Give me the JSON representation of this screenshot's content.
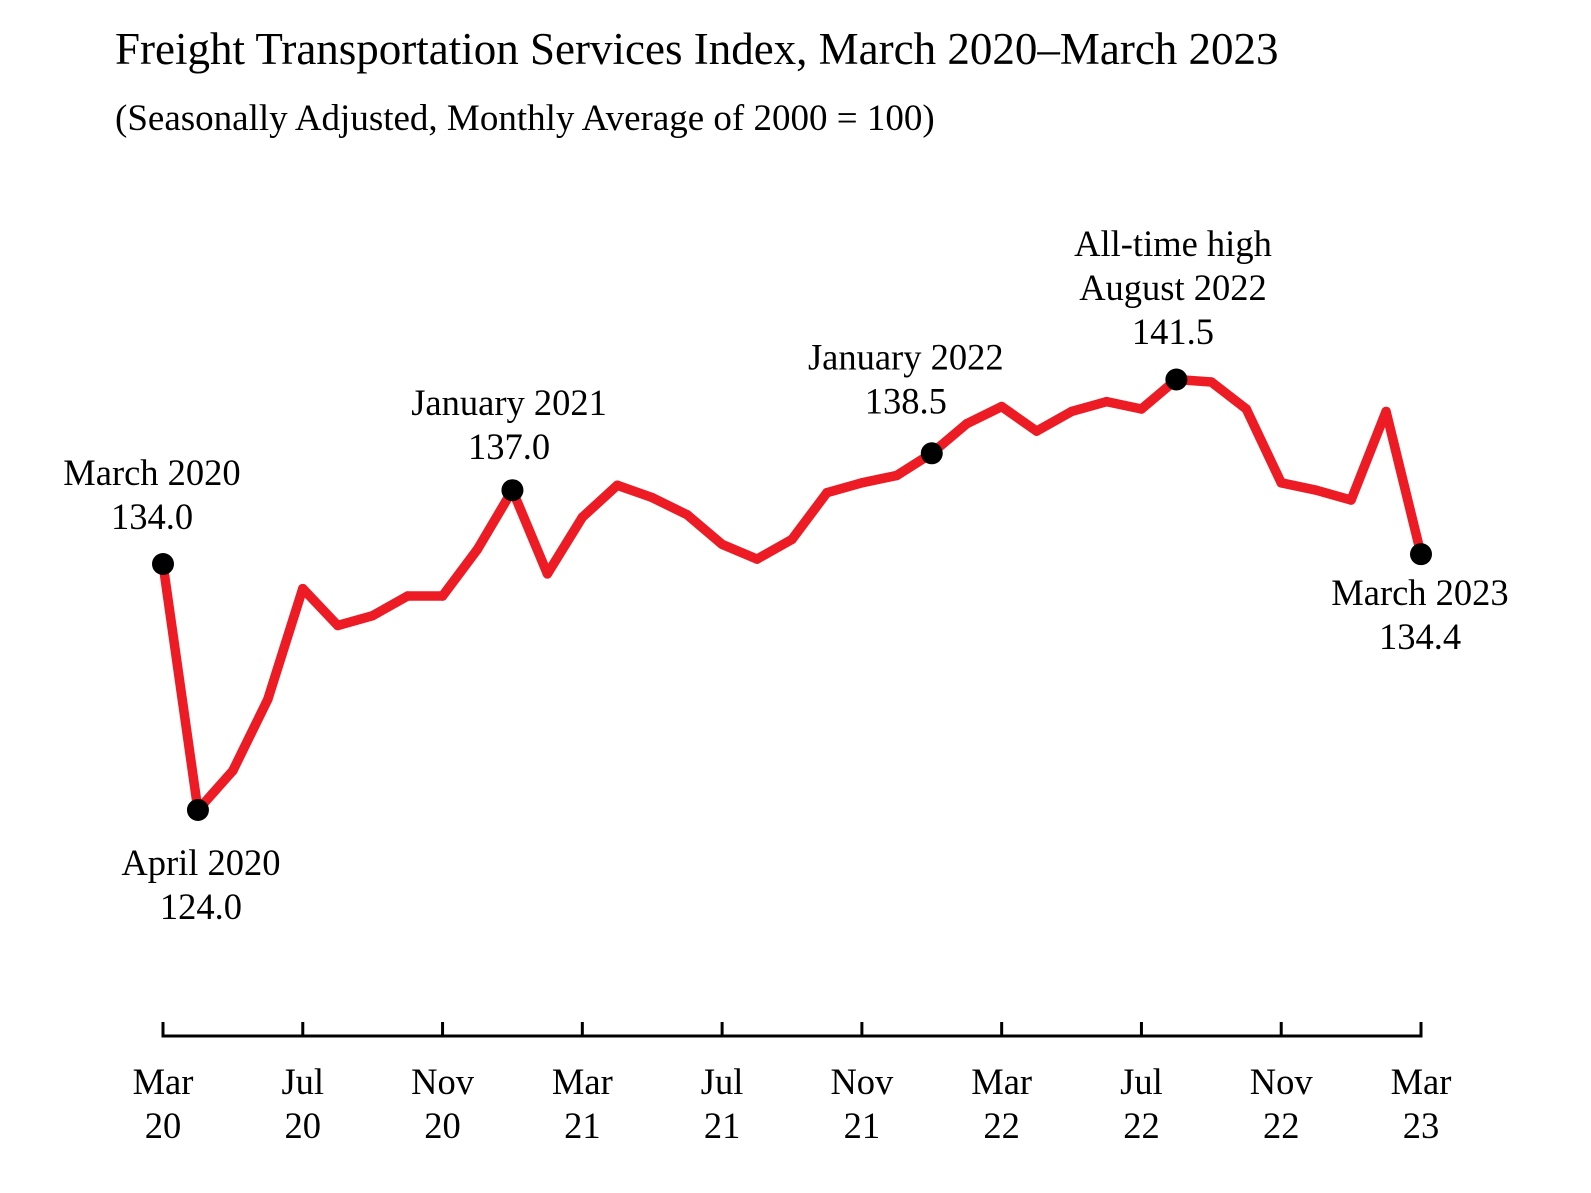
{
  "chart_data": {
    "type": "line",
    "title": "Freight Transportation Services Index, March 2020–March 2023",
    "subtitle": "(Seasonally Adjusted, Monthly Average of 2000 = 100)",
    "xlim": [
      0,
      36
    ],
    "ylim": [
      120,
      145
    ],
    "grid": false,
    "legend": false,
    "colors": {
      "line": "#ED1C24",
      "marker": "#000000",
      "axis": "#000000"
    },
    "series": [
      {
        "x": [
          0,
          1,
          2,
          3,
          4,
          5,
          6,
          7,
          8,
          9,
          10,
          11,
          12,
          13,
          14,
          15,
          16,
          17,
          18,
          19,
          20,
          21,
          22,
          23,
          24,
          25,
          26,
          27,
          28,
          29,
          30,
          31,
          32,
          33,
          34,
          35,
          36
        ],
        "values": [
          134.0,
          124.0,
          125.6,
          128.5,
          133.0,
          131.5,
          131.9,
          132.7,
          132.7,
          134.6,
          137.0,
          133.6,
          135.9,
          137.2,
          136.7,
          136.0,
          134.8,
          134.2,
          135.0,
          136.9,
          137.3,
          137.6,
          138.5,
          139.7,
          140.4,
          139.4,
          140.2,
          140.6,
          140.3,
          141.5,
          141.4,
          140.3,
          137.3,
          137.0,
          136.6,
          140.2,
          134.4
        ]
      }
    ],
    "x_ticks": [
      {
        "x": 0,
        "lines": [
          "Mar",
          "20"
        ]
      },
      {
        "x": 4,
        "lines": [
          "Jul",
          "20"
        ]
      },
      {
        "x": 8,
        "lines": [
          "Nov",
          "20"
        ]
      },
      {
        "x": 12,
        "lines": [
          "Mar",
          "21"
        ]
      },
      {
        "x": 16,
        "lines": [
          "Jul",
          "21"
        ]
      },
      {
        "x": 20,
        "lines": [
          "Nov",
          "21"
        ]
      },
      {
        "x": 24,
        "lines": [
          "Mar",
          "22"
        ]
      },
      {
        "x": 28,
        "lines": [
          "Jul",
          "22"
        ]
      },
      {
        "x": 32,
        "lines": [
          "Nov",
          "22"
        ]
      },
      {
        "x": 36,
        "lines": [
          "Mar",
          "23"
        ]
      }
    ],
    "annotations": [
      {
        "x": 0,
        "lines": [
          "March 2020",
          "134.0"
        ]
      },
      {
        "x": 1,
        "lines": [
          "April 2020",
          "124.0"
        ]
      },
      {
        "x": 10,
        "lines": [
          "January 2021",
          "137.0"
        ]
      },
      {
        "x": 22,
        "lines": [
          "January 2022",
          "138.5"
        ]
      },
      {
        "x": 29,
        "lines": [
          "All-time high",
          "August 2022",
          "141.5"
        ]
      },
      {
        "x": 36,
        "lines": [
          "March 2023",
          "134.4"
        ]
      }
    ]
  }
}
